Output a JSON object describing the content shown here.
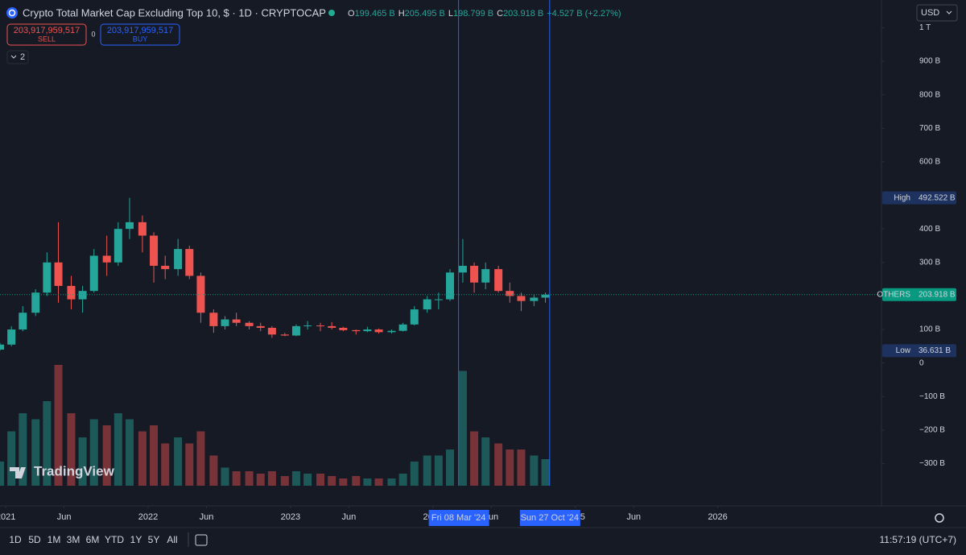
{
  "header": {
    "title": "Crypto Total Market Cap Excluding Top 10, $ · 1D · CRYPTOCAP",
    "ohlc": [
      {
        "label": "O",
        "value": "199.465 B"
      },
      {
        "label": "H",
        "value": "205.495 B"
      },
      {
        "label": "L",
        "value": "198.799 B"
      },
      {
        "label": "C",
        "value": "203.918 B"
      }
    ],
    "change": "+4.527 B (+2.27%)",
    "currency": "USD",
    "indicators_count": "2"
  },
  "trade_panel": {
    "sell_price": "203,917,959,517",
    "sell_label": "SELL",
    "spread": "0",
    "buy_price": "203,917,959,517",
    "buy_label": "BUY"
  },
  "chart_data": {
    "type": "candlestick",
    "up_color": "#26a69a",
    "down_color": "#ef5350",
    "xlim": [
      2020.96,
      2027.15
    ],
    "ylim": [
      -370,
      1000
    ],
    "yticks": [
      {
        "value": 1000,
        "label": "1 T"
      },
      {
        "value": 900,
        "label": "900 B"
      },
      {
        "value": 800,
        "label": "800 B"
      },
      {
        "value": 700,
        "label": "700 B"
      },
      {
        "value": 600,
        "label": "600 B"
      },
      {
        "value": 400,
        "label": "400 B"
      },
      {
        "value": 300,
        "label": "300 B"
      },
      {
        "value": 100,
        "label": "100 B"
      },
      0,
      {
        "value": -100,
        "label": "−100 B"
      },
      {
        "value": -200,
        "label": "−200 B"
      },
      {
        "value": -300,
        "label": "−300 B"
      }
    ],
    "xticks": [
      {
        "value": 2021.0,
        "label": "2021"
      },
      {
        "value": 2021.41,
        "label": "Jun"
      },
      {
        "value": 2022.0,
        "label": "2022"
      },
      {
        "value": 2022.41,
        "label": "Jun"
      },
      {
        "value": 2023.0,
        "label": "2023"
      },
      {
        "value": 2023.41,
        "label": "Jun"
      },
      {
        "value": 2024.0,
        "label": "2024"
      },
      {
        "value": 2024.41,
        "label": "Jun"
      },
      {
        "value": 2025.0,
        "label": "2025"
      },
      {
        "value": 2025.41,
        "label": "Jun"
      },
      {
        "value": 2026.0,
        "label": "2026"
      }
    ],
    "x": [
      2020.96,
      2021.04,
      2021.12,
      2021.21,
      2021.29,
      2021.37,
      2021.46,
      2021.54,
      2021.62,
      2021.71,
      2021.79,
      2021.87,
      2021.96,
      2022.04,
      2022.12,
      2022.21,
      2022.29,
      2022.37,
      2022.46,
      2022.54,
      2022.62,
      2022.71,
      2022.79,
      2022.87,
      2022.96,
      2023.04,
      2023.12,
      2023.21,
      2023.29,
      2023.37,
      2023.46,
      2023.54,
      2023.62,
      2023.71,
      2023.79,
      2023.87,
      2023.96,
      2024.04,
      2024.12,
      2024.21,
      2024.29,
      2024.37,
      2024.46,
      2024.54,
      2024.62,
      2024.71,
      2024.79
    ],
    "candles": [
      [
        40,
        60,
        36.631,
        55
      ],
      [
        55,
        110,
        50,
        100
      ],
      [
        100,
        170,
        95,
        150
      ],
      [
        150,
        220,
        140,
        210
      ],
      [
        210,
        330,
        200,
        300
      ],
      [
        300,
        420,
        180,
        230
      ],
      [
        230,
        260,
        160,
        190
      ],
      [
        190,
        230,
        150,
        215
      ],
      [
        215,
        340,
        210,
        320
      ],
      [
        320,
        380,
        260,
        300
      ],
      [
        300,
        420,
        290,
        400
      ],
      [
        400,
        492.522,
        370,
        420
      ],
      [
        420,
        440,
        330,
        380
      ],
      [
        380,
        390,
        240,
        290
      ],
      [
        290,
        320,
        250,
        280
      ],
      [
        280,
        370,
        260,
        340
      ],
      [
        340,
        350,
        250,
        260
      ],
      [
        260,
        270,
        120,
        150
      ],
      [
        150,
        160,
        90,
        110
      ],
      [
        110,
        140,
        100,
        130
      ],
      [
        130,
        150,
        110,
        120
      ],
      [
        120,
        125,
        100,
        110
      ],
      [
        110,
        120,
        95,
        105
      ],
      [
        105,
        110,
        75,
        85
      ],
      [
        85,
        90,
        80,
        82
      ],
      [
        82,
        115,
        80,
        110
      ],
      [
        110,
        125,
        100,
        112
      ],
      [
        112,
        120,
        95,
        110
      ],
      [
        110,
        122,
        100,
        105
      ],
      [
        105,
        108,
        95,
        98
      ],
      [
        98,
        100,
        85,
        95
      ],
      [
        95,
        108,
        92,
        100
      ],
      [
        100,
        103,
        88,
        92
      ],
      [
        92,
        100,
        88,
        96
      ],
      [
        96,
        120,
        94,
        115
      ],
      [
        115,
        170,
        112,
        160
      ],
      [
        160,
        200,
        150,
        190
      ],
      [
        190,
        210,
        160,
        190
      ],
      [
        190,
        280,
        185,
        270
      ],
      [
        270,
        370,
        240,
        290
      ],
      [
        290,
        300,
        210,
        240
      ],
      [
        240,
        300,
        220,
        280
      ],
      [
        280,
        290,
        210,
        215
      ],
      [
        215,
        240,
        180,
        200
      ],
      [
        200,
        210,
        155,
        185
      ],
      [
        185,
        205,
        170,
        195
      ],
      [
        195,
        210,
        180,
        203.918
      ]
    ],
    "volume": [
      20,
      45,
      60,
      55,
      70,
      100,
      60,
      40,
      55,
      50,
      60,
      55,
      45,
      50,
      35,
      40,
      35,
      45,
      25,
      15,
      12,
      12,
      10,
      12,
      8,
      12,
      10,
      10,
      8,
      6,
      8,
      6,
      6,
      6,
      10,
      20,
      25,
      25,
      30,
      95,
      45,
      40,
      35,
      30,
      30,
      25,
      22
    ],
    "price_labels": [
      {
        "name": "High",
        "value": 492.522,
        "label": "492.522 B",
        "color": "#1e3260"
      },
      {
        "name": "OTHERS",
        "value": 203.918,
        "label": "203.918 B",
        "color": "#089981"
      },
      {
        "name": "Low",
        "value": 36.631,
        "label": "36.631 B",
        "color": "#1e3260"
      }
    ],
    "crosshairs": [
      {
        "value": 2024.18,
        "label": "Fri 08 Mar '24"
      },
      {
        "value": 2024.82,
        "label": "Sun 27 Oct '24"
      }
    ],
    "crosshair_color": "#2962ff"
  },
  "toolbar": {
    "ranges": [
      "1D",
      "5D",
      "1M",
      "3M",
      "6M",
      "YTD",
      "1Y",
      "5Y",
      "All"
    ],
    "clock": "11:57:19 (UTC+7)"
  },
  "watermark": "TradingView"
}
